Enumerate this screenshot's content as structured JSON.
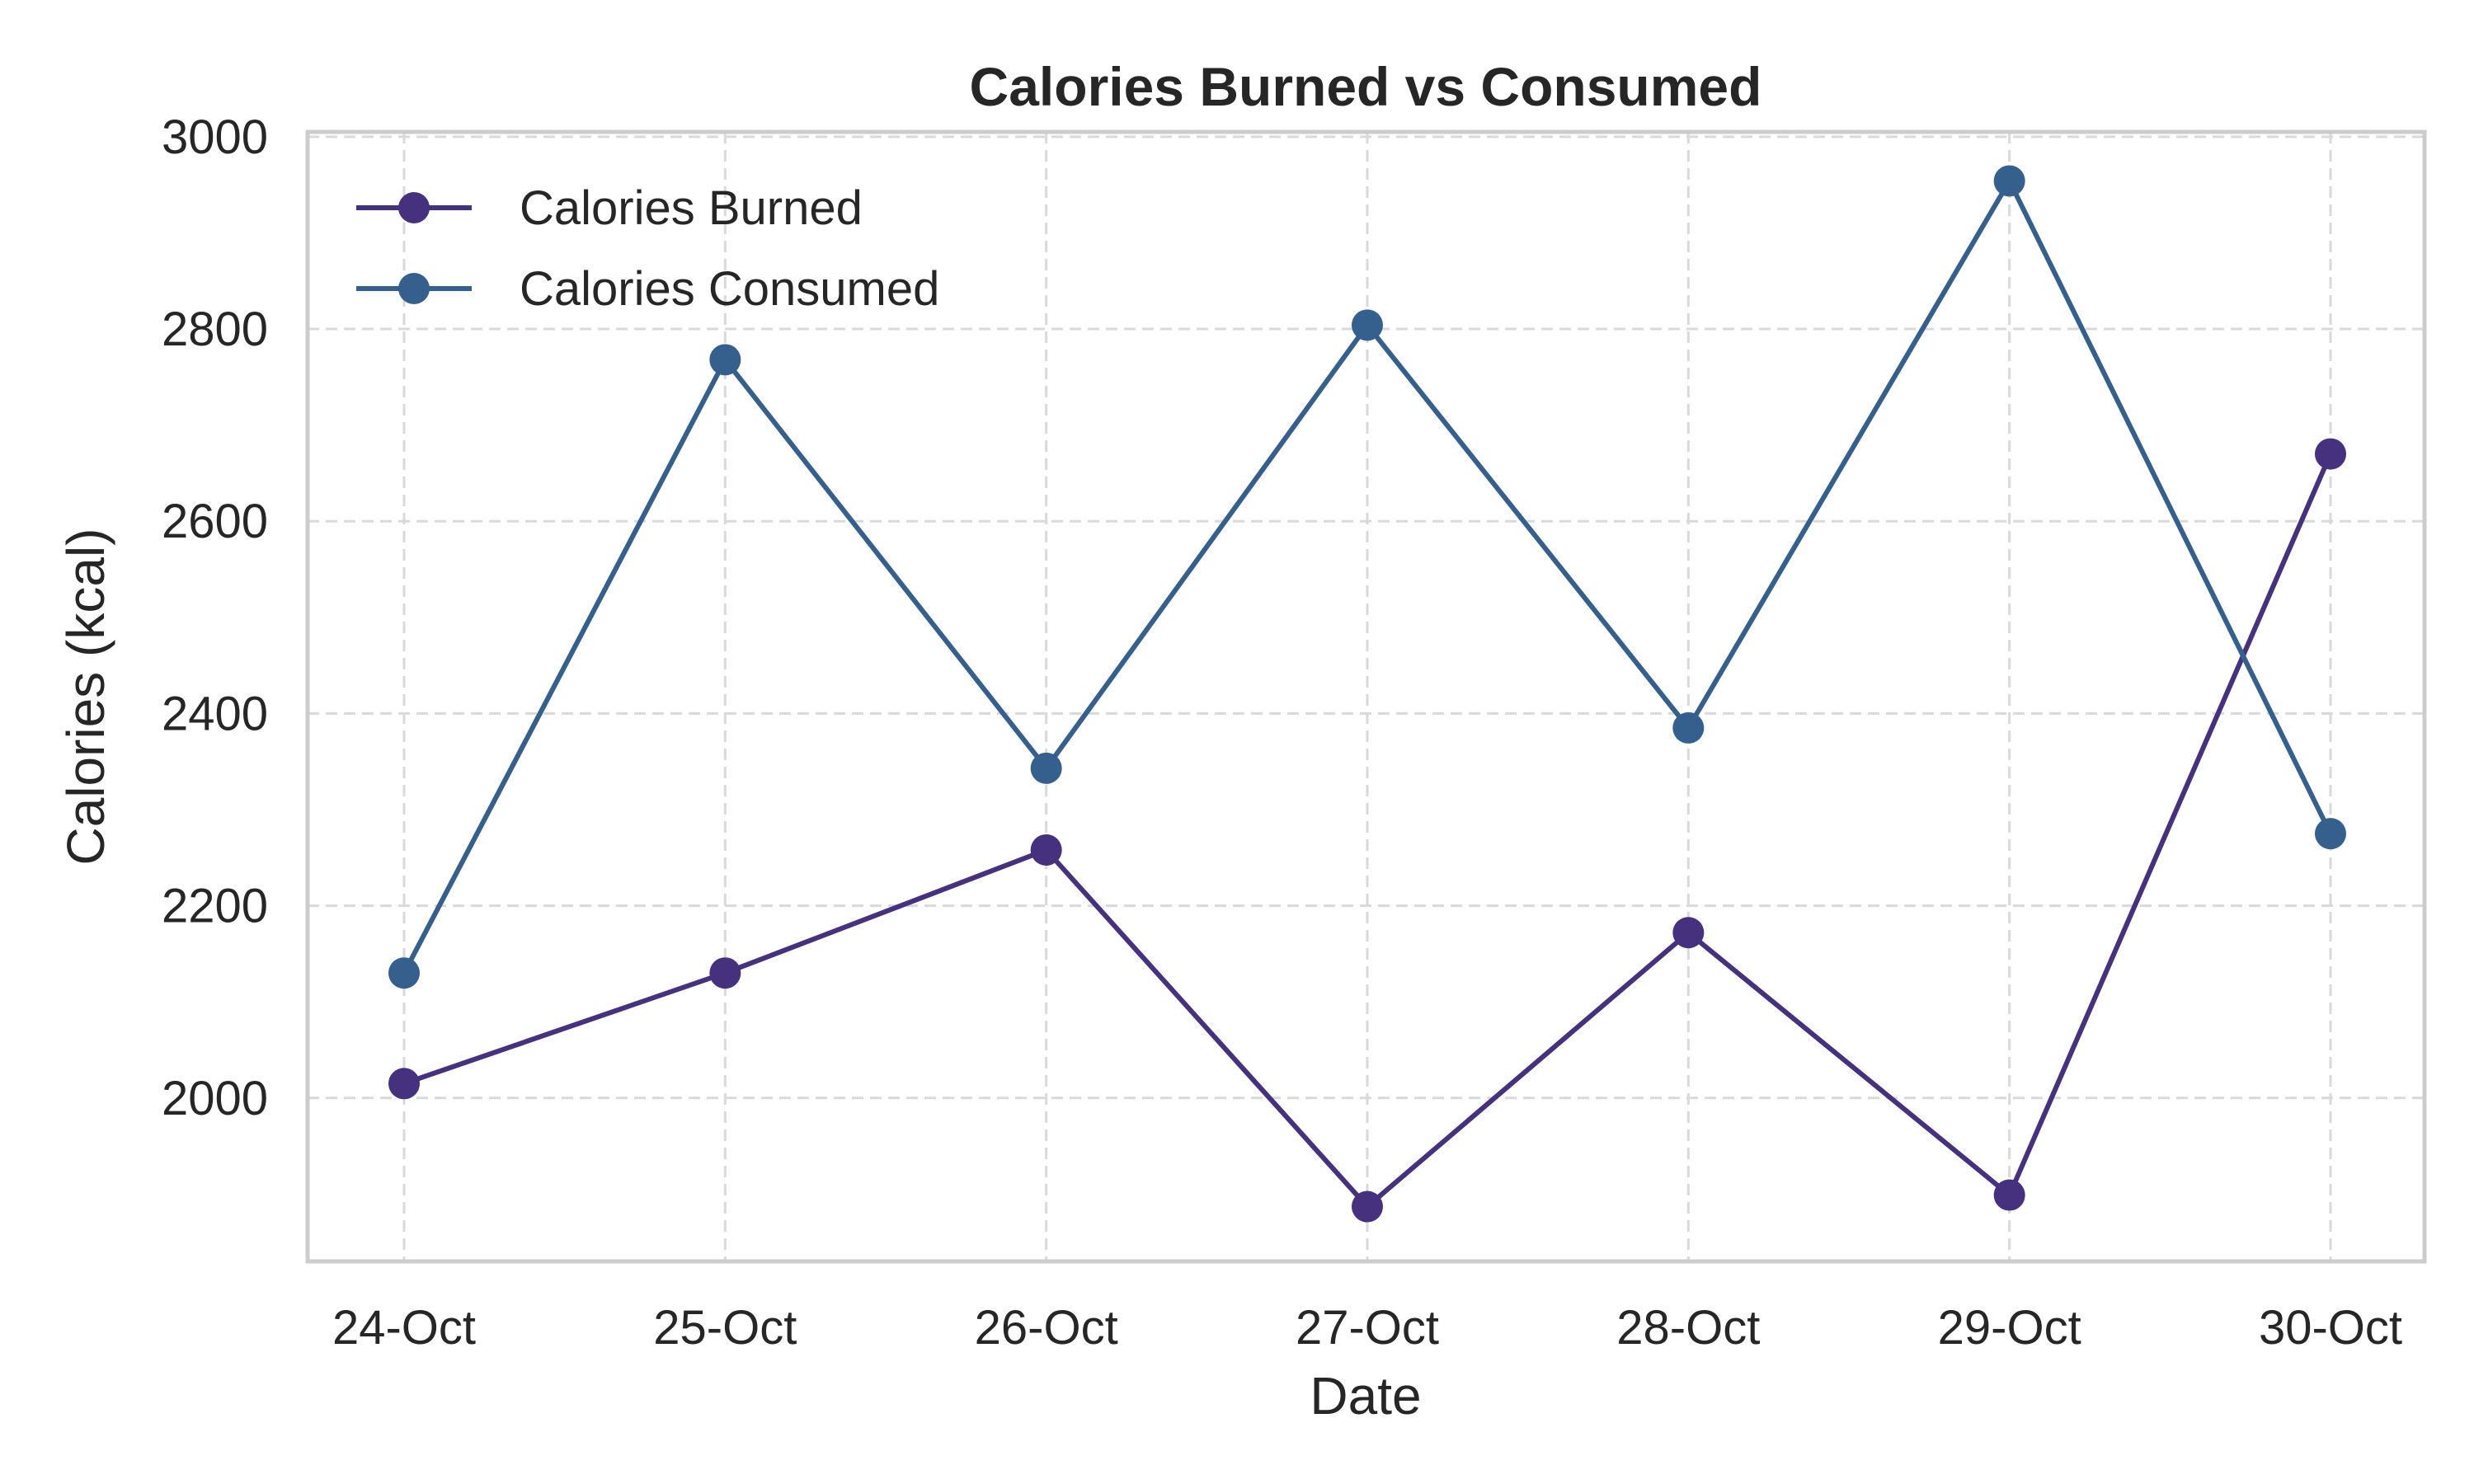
{
  "chart_data": {
    "type": "line",
    "title": "Calories Burned vs Consumed",
    "xlabel": "Date",
    "ylabel": "Calories (kcal)",
    "categories": [
      "24-Oct",
      "25-Oct",
      "26-Oct",
      "27-Oct",
      "28-Oct",
      "29-Oct",
      "30-Oct"
    ],
    "series": [
      {
        "name": "Calories Burned",
        "color": "#45317e",
        "values": [
          2015,
          2130,
          2258,
          1887,
          2172,
          1899,
          2670
        ]
      },
      {
        "name": "Calories Consumed",
        "color": "#355f8d",
        "values": [
          2130,
          2768,
          2343,
          2804,
          2385,
          2954,
          2275
        ]
      }
    ],
    "ylim": [
      1830,
      3005
    ],
    "yticks": [
      2000,
      2200,
      2400,
      2600,
      2800,
      3000
    ],
    "grid": true,
    "legend_position": "top-left"
  }
}
